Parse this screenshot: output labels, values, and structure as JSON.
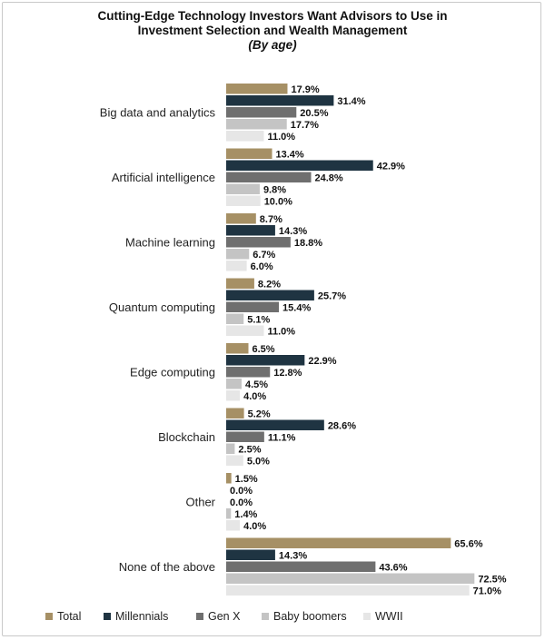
{
  "chart_data": {
    "type": "bar",
    "orientation": "horizontal",
    "title": "Cutting-Edge Technology Investors Want Advisors to Use in Investment Selection and Wealth Management",
    "title_line1": "Cutting-Edge Technology Investors Want Advisors to Use in",
    "title_line2": "Investment Selection and Wealth Management",
    "subtitle": "(By age)",
    "xlabel": "",
    "ylabel": "",
    "value_suffix": "%",
    "xlim": [
      0,
      75
    ],
    "categories": [
      "Big data and analytics",
      "Artificial intelligence",
      "Machine learning",
      "Quantum computing",
      "Edge computing",
      "Blockchain",
      "Other",
      "None of the above"
    ],
    "series": [
      {
        "name": "Total",
        "color": "#a69065",
        "values": [
          17.9,
          13.4,
          8.7,
          8.2,
          6.5,
          5.2,
          1.5,
          65.6
        ]
      },
      {
        "name": "Millennials",
        "color": "#1f3442",
        "values": [
          31.4,
          42.9,
          14.3,
          25.7,
          22.9,
          28.6,
          0.0,
          14.3
        ]
      },
      {
        "name": "Gen X",
        "color": "#6f6f6f",
        "values": [
          20.5,
          24.8,
          18.8,
          15.4,
          12.8,
          11.1,
          0.0,
          43.6
        ]
      },
      {
        "name": "Baby boomers",
        "color": "#c4c4c4",
        "values": [
          17.7,
          9.8,
          6.7,
          5.1,
          4.5,
          2.5,
          1.4,
          72.5
        ]
      },
      {
        "name": "WWII",
        "color": "#e6e6e6",
        "values": [
          11.0,
          10.0,
          6.0,
          11.0,
          4.0,
          5.0,
          4.0,
          71.0
        ]
      }
    ],
    "legend_position": "bottom"
  }
}
